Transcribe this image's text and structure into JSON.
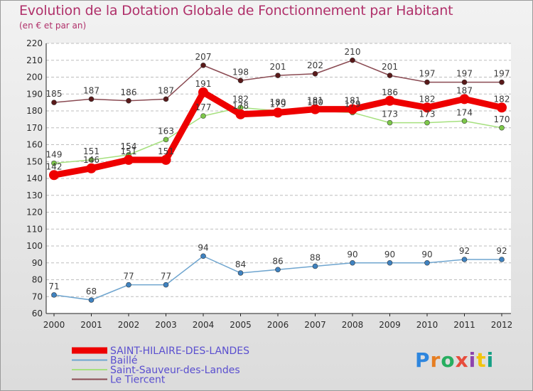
{
  "title": "Evolution de la Dotation Globale de Fonctionnement par Habitant",
  "subtitle": "(en € et par an)",
  "logo": {
    "text": "Proxiti",
    "colors": [
      "#2e86de",
      "#e67e22",
      "#27ae60",
      "#e74c3c",
      "#8e44ad",
      "#f1c40f",
      "#16a085"
    ]
  },
  "chart_data": {
    "type": "line",
    "title": "Evolution de la Dotation Globale de Fonctionnement par Habitant",
    "subtitle": "(en € et par an)",
    "x": [
      "2000",
      "2001",
      "2002",
      "2003",
      "2004",
      "2005",
      "2006",
      "2007",
      "2008",
      "2009",
      "2010",
      "2011",
      "2012"
    ],
    "ylim": [
      60,
      220
    ],
    "yticks": [
      60,
      70,
      80,
      90,
      100,
      110,
      120,
      130,
      140,
      150,
      160,
      170,
      180,
      190,
      200,
      210,
      220
    ],
    "grid": "horizontal dashed",
    "legend_position": "bottom-left",
    "series": [
      {
        "name": "SAINT-HILAIRE-DES-LANDES",
        "color": "#ee0000",
        "marker": "#ee0000",
        "style": "thick",
        "values": [
          142,
          146,
          151,
          151,
          191,
          178,
          179,
          181,
          181,
          186,
          182,
          187,
          182
        ]
      },
      {
        "name": "Baillé",
        "color": "#6fa5cf",
        "marker": "#3f82c0",
        "style": "thin",
        "values": [
          71,
          68,
          77,
          77,
          94,
          84,
          86,
          88,
          90,
          90,
          90,
          92,
          92
        ]
      },
      {
        "name": "Saint-Sauveur-des-Landes",
        "color": "#a6e07f",
        "marker": "#7dc74a",
        "style": "thin",
        "values": [
          149,
          151,
          154,
          163,
          177,
          182,
          180,
          180,
          179,
          173,
          173,
          174,
          170
        ]
      },
      {
        "name": "Le Tiercent",
        "color": "#8a4a52",
        "marker": "#5a1a1a",
        "style": "thin",
        "values": [
          185,
          187,
          186,
          187,
          207,
          198,
          201,
          202,
          210,
          201,
          197,
          197,
          197
        ]
      }
    ]
  }
}
